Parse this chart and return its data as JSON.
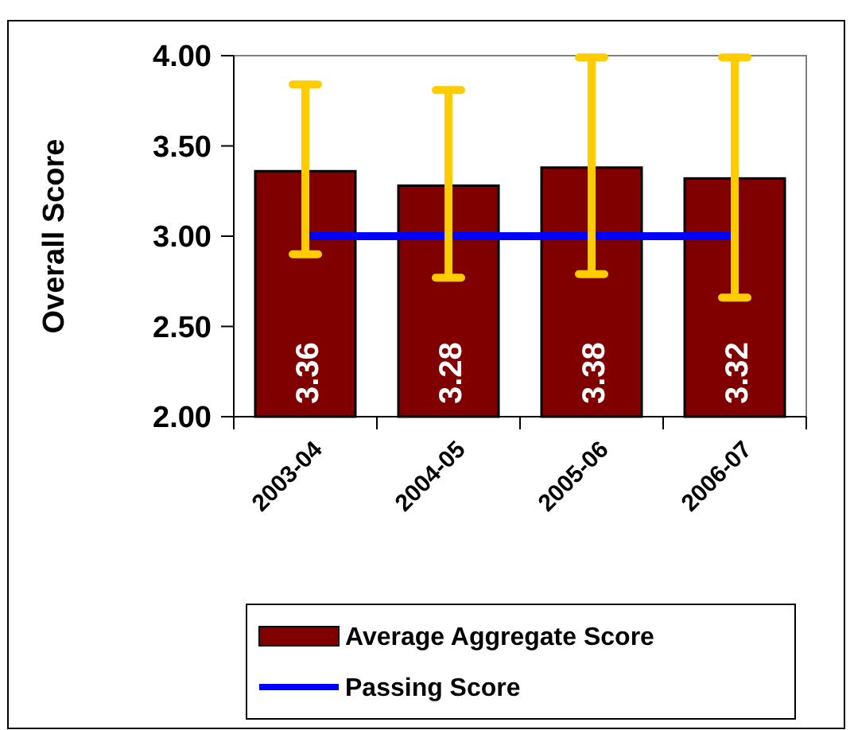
{
  "chart_data": {
    "type": "bar",
    "ylabel": "Overall Score",
    "categories": [
      "2003-04",
      "2004-05",
      "2005-06",
      "2006-07"
    ],
    "series": [
      {
        "name": "Average Aggregate Score",
        "color": "#800000",
        "values": [
          3.36,
          3.28,
          3.38,
          3.32
        ],
        "value_labels": [
          "3.36",
          "3.28",
          "3.38",
          "3.32"
        ],
        "errors": [
          [
            2.9,
            3.84
          ],
          [
            2.77,
            3.81
          ],
          [
            2.79,
            3.99
          ],
          [
            2.66,
            3.99
          ]
        ]
      },
      {
        "type": "line",
        "name": "Passing Score",
        "color": "#0000ff",
        "values": [
          3,
          3,
          3,
          3
        ]
      }
    ],
    "ylim": [
      2,
      4
    ],
    "yticks": [
      {
        "value": 2,
        "label": "2.00"
      },
      {
        "value": 2.5,
        "label": "2.50"
      },
      {
        "value": 3,
        "label": "3.00"
      },
      {
        "value": 3.5,
        "label": "3.50"
      },
      {
        "value": 4,
        "label": "4.00"
      }
    ],
    "legend": "bottom",
    "grid": false
  }
}
